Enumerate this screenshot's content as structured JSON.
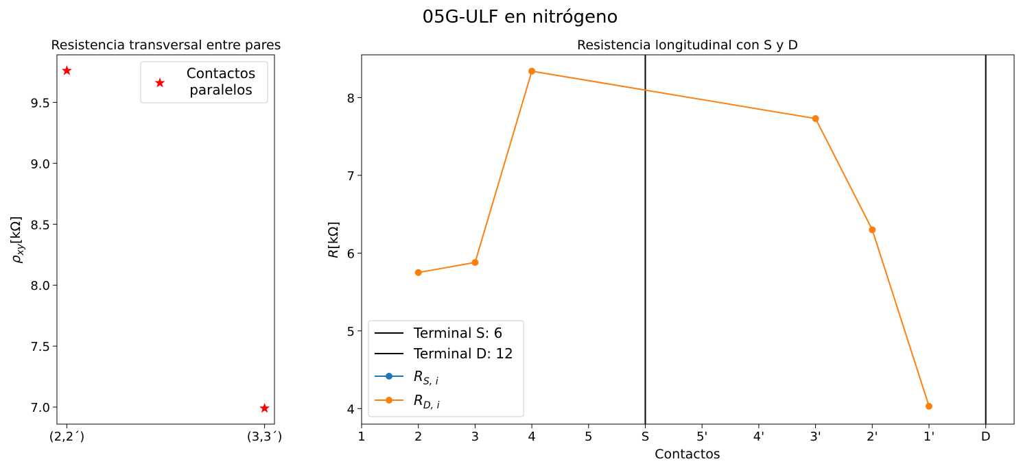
{
  "suptitle": "05G-ULF en nitrógeno",
  "chart_data": [
    {
      "type": "scatter",
      "title": "Resistencia transversal entre pares",
      "xlabel": "",
      "ylabel_main": "ρ",
      "ylabel_sub": "xy",
      "ylabel_unit": "[kΩ]",
      "categories": [
        "(2,2´)",
        "(3,3´)"
      ],
      "ylim": [
        6.86,
        9.89
      ],
      "yticks": [
        7.0,
        7.5,
        8.0,
        8.5,
        9.0,
        9.5
      ],
      "ytick_labels": [
        "7.0",
        "7.5",
        "8.0",
        "8.5",
        "9.0",
        "9.5"
      ],
      "series": [
        {
          "name": "Contactos\nparalelos",
          "legend_line1": "Contactos",
          "legend_line2": "paralelos",
          "marker": "star",
          "color": "#ff0000",
          "values": [
            9.76,
            6.99
          ]
        }
      ],
      "legend_position": "upper right",
      "grid": false
    },
    {
      "type": "line",
      "title": "Resistencia longitudinal con S y D",
      "xlabel": "Contactos",
      "ylabel_main": "R",
      "ylabel_unit": "[kΩ]",
      "xlim": [
        1,
        12.5
      ],
      "ylim": [
        3.8,
        8.55
      ],
      "xticks": [
        1,
        2,
        3,
        4,
        5,
        6,
        7,
        8,
        9,
        10,
        11,
        12
      ],
      "xtick_labels": [
        "1",
        "2",
        "3",
        "4",
        "5",
        "S",
        "5'",
        "4'",
        "3'",
        "2'",
        "1'",
        "D"
      ],
      "yticks": [
        4,
        5,
        6,
        7,
        8
      ],
      "ytick_labels": [
        "4",
        "5",
        "6",
        "7",
        "8"
      ],
      "vlines": [
        {
          "name": "Terminal S: 6",
          "x": 6,
          "color": "#000000"
        },
        {
          "name": "Terminal D: 12",
          "x": 12,
          "color": "#000000"
        }
      ],
      "series": [
        {
          "name_main": "R",
          "name_sub": "S, i",
          "color": "#1f77b4",
          "x": [],
          "values": []
        },
        {
          "name_main": "R",
          "name_sub": "D, i",
          "color": "#ff7f0e",
          "x": [
            2,
            3,
            4,
            9,
            10,
            11
          ],
          "values": [
            5.75,
            5.88,
            8.34,
            7.73,
            6.3,
            4.03
          ]
        }
      ],
      "legend_position": "lower left",
      "grid": false
    }
  ]
}
